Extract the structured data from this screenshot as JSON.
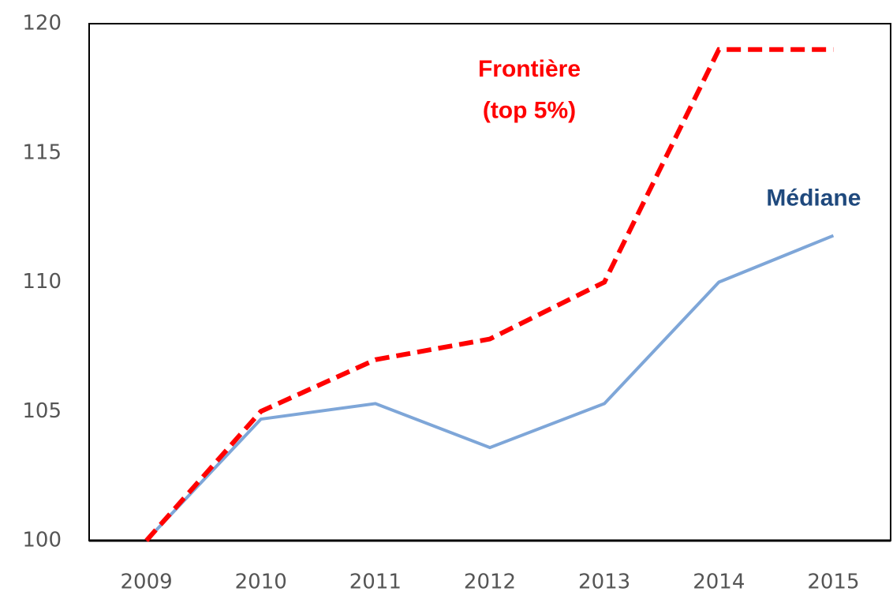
{
  "chart_data": {
    "type": "line",
    "categories": [
      "2009",
      "2010",
      "2011",
      "2012",
      "2013",
      "2014",
      "2015"
    ],
    "series": [
      {
        "color": "#ff0000",
        "dashed": true,
        "values": [
          100,
          105,
          107,
          107.8,
          110,
          119,
          119
        ]
      },
      {
        "color": "#7ea6d8",
        "dashed": false,
        "values": [
          100,
          104.7,
          105.3,
          103.6,
          105.3,
          110,
          111.8
        ]
      }
    ],
    "annotations": [
      {
        "text": "Frontière",
        "color": "#ff0000",
        "x": "2012",
        "y": 118.2
      },
      {
        "text": "(top 5%)",
        "color": "#ff0000",
        "x": "2012",
        "y": 116.6
      },
      {
        "text": "Médiane",
        "color": "#1f497d",
        "x": "2015",
        "y": 113.2
      }
    ],
    "ylim": [
      100,
      120
    ],
    "yticks": [
      100,
      105,
      110,
      115,
      120
    ],
    "grid": false
  }
}
